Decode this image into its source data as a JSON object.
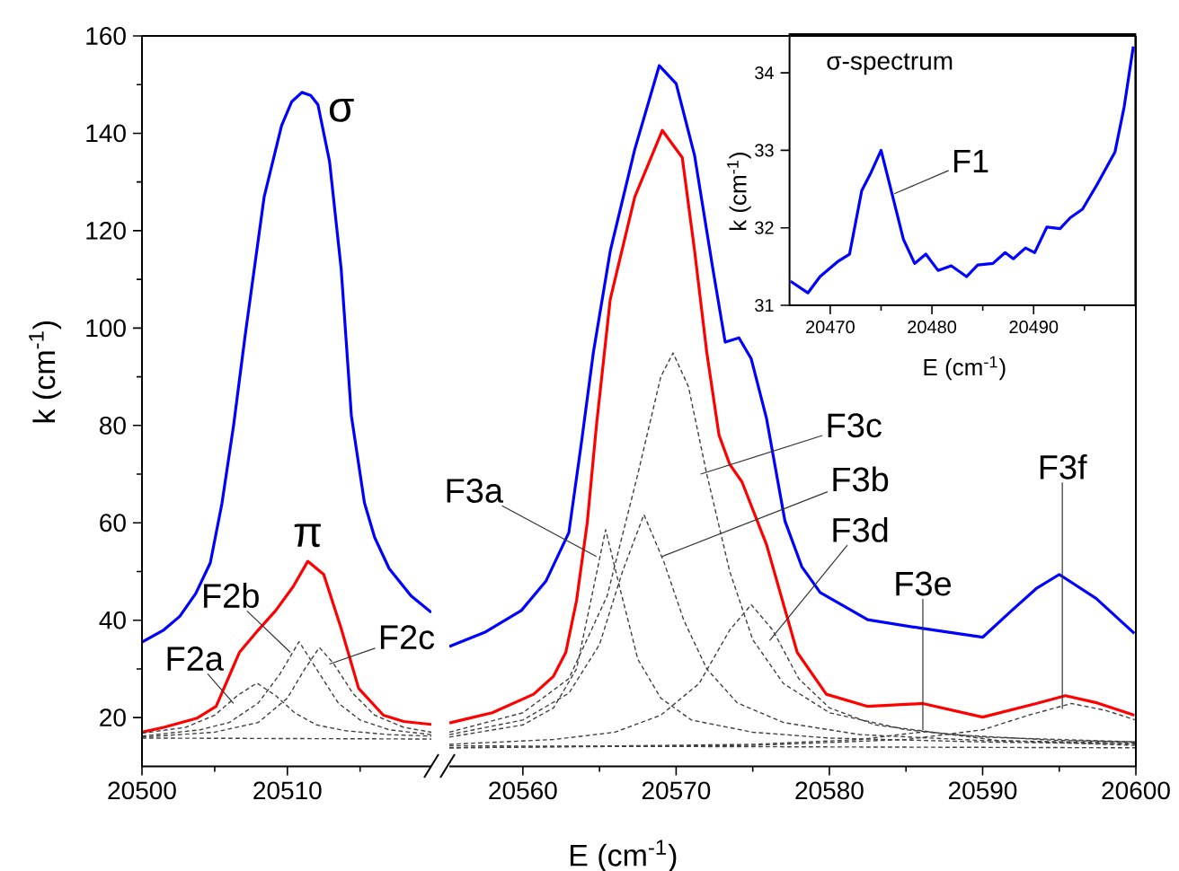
{
  "chart_data": [
    {
      "type": "line",
      "ylabel": "k (cm$^{-1}$)",
      "xlim": [
        20500,
        20519.9
      ],
      "ylim": [
        10,
        160
      ],
      "xticks": [
        20500,
        {
          "value": 20505,
          "label": null
        },
        20510,
        {
          "value": 20515,
          "label": null
        }
      ],
      "yticks": [
        20,
        {
          "value": 30,
          "label": null
        },
        40,
        {
          "value": 50,
          "label": null
        },
        60,
        {
          "value": 70,
          "label": null
        },
        80,
        {
          "value": 90,
          "label": null
        },
        100,
        {
          "value": 110,
          "label": null
        },
        120,
        {
          "value": 130,
          "label": null
        },
        140,
        {
          "value": 150,
          "label": null
        },
        160
      ],
      "series": [
        {
          "name": "σ",
          "color": "#0000ff",
          "line_style": "solid",
          "x": [
            20500,
            20501.5,
            20502.6,
            20503.7,
            20504.7,
            20505.5,
            20506.3,
            20507.1,
            20508.4,
            20509.6,
            20510.3,
            20511.0,
            20511.6,
            20512.1,
            20512.9,
            20513.7,
            20514.4,
            20515.3,
            20516.0,
            20517.0,
            20518.5,
            20519.9
          ],
          "values": [
            35.5,
            38,
            40.8,
            45.5,
            51.8,
            64,
            80,
            98.6,
            126.9,
            141.6,
            146.5,
            148.4,
            147.8,
            145.9,
            134.2,
            112.1,
            82,
            64.1,
            57,
            50.6,
            45,
            41.6
          ]
        },
        {
          "name": "π",
          "color": "#ff0000",
          "line_style": "solid",
          "x": [
            20500,
            20501.5,
            20503.8,
            20505.1,
            20506.7,
            20508,
            20509.2,
            20510.4,
            20511.4,
            20512.5,
            20513.7,
            20514.9,
            20516.6,
            20518,
            20519.9
          ],
          "values": [
            17,
            18,
            19.9,
            22.3,
            33.4,
            38,
            42,
            46.9,
            52.1,
            49.4,
            38.3,
            26,
            20.5,
            19.2,
            18.6
          ]
        },
        {
          "color": "#404040",
          "line_style": "dashed",
          "x": [
            20500,
            20503,
            20505,
            20506.6,
            20507.9,
            20509.2,
            20510.5,
            20512,
            20514,
            20517,
            20519.9
          ],
          "values": [
            16.8,
            18,
            20.5,
            24.6,
            27.1,
            24.5,
            21,
            18.5,
            17.3,
            16.5,
            16.2
          ]
        },
        {
          "color": "#404040",
          "line_style": "dashed",
          "x": [
            20500,
            20504,
            20506,
            20508,
            20509.5,
            20510.8,
            20512,
            20513.5,
            20515,
            20517,
            20519.9
          ],
          "values": [
            16.2,
            17.5,
            19,
            23,
            29,
            35.6,
            30,
            23,
            19.5,
            17.5,
            16.5
          ]
        },
        {
          "color": "#404040",
          "line_style": "dashed",
          "x": [
            20500,
            20505,
            20508,
            20510,
            20511.2,
            20512.2,
            20513.2,
            20514.5,
            20516,
            20518,
            20519.9
          ],
          "values": [
            16,
            17,
            19,
            24,
            30,
            34.4,
            31,
            25,
            20.5,
            18,
            17
          ]
        },
        {
          "color": "#404040",
          "line_style": "dashed",
          "x": [
            20500,
            20519.9
          ],
          "values": [
            15.8,
            15.6
          ]
        }
      ],
      "annotations": [
        {
          "text": "F2a",
          "x": 20506.3,
          "y": 22.9
        },
        {
          "text": "F2b",
          "x": 20510.2,
          "y": 33.4
        },
        {
          "text": "F2c",
          "x": 20512.9,
          "y": 31
        }
      ]
    },
    {
      "type": "line",
      "xlabel": "E (cm$^{-1}$)",
      "xlim": [
        20555.2,
        20600
      ],
      "ylim": [
        10,
        160
      ],
      "tick_labels": "x",
      "xticks": [
        20560,
        {
          "value": 20565,
          "label": null
        },
        20570,
        {
          "value": 20575,
          "label": null
        },
        20580,
        {
          "value": 20585,
          "label": null
        },
        20590,
        {
          "value": 20595,
          "label": null
        },
        20600
      ],
      "series": [
        {
          "color": "#0000ff",
          "line_style": "solid",
          "x": [
            20555.2,
            20557.5,
            20559.9,
            20561.5,
            20563.0,
            20563.8,
            20564.6,
            20565.7,
            20567.3,
            20568.9,
            20570.0,
            20571.2,
            20572.4,
            20573.2,
            20574.1,
            20574.9,
            20575.9,
            20577.1,
            20578.2,
            20579.4,
            20582.5,
            20586.1,
            20590.0,
            20591.9,
            20593.5,
            20595.0,
            20597.4,
            20599.9
          ],
          "values": [
            34.6,
            37.5,
            42,
            48,
            58,
            76,
            95,
            115.8,
            136.7,
            153.9,
            150.2,
            135.5,
            112.1,
            97.1,
            98,
            93.7,
            81.4,
            60.4,
            51,
            45.7,
            40.1,
            38.3,
            36.5,
            42,
            46.5,
            49.4,
            44.5,
            37.3
          ]
        },
        {
          "color": "#ff0000",
          "line_style": "solid",
          "x": [
            20555.2,
            20558,
            20560.7,
            20562,
            20562.8,
            20563.5,
            20564.2,
            20564.8,
            20565.7,
            20567.3,
            20569.1,
            20570.4,
            20571.2,
            20572.0,
            20572.8,
            20573.5,
            20574.3,
            20575.9,
            20577.9,
            20579.8,
            20582.5,
            20586.1,
            20590,
            20593.5,
            20595.4,
            20597.5,
            20599.9
          ],
          "values": [
            18.9,
            21,
            24.8,
            28.5,
            33.4,
            44,
            60,
            80,
            105.9,
            126.9,
            140.6,
            135,
            116,
            95,
            78,
            72,
            68.4,
            55.5,
            33.4,
            24.8,
            22.3,
            22.9,
            20.1,
            22.9,
            24.5,
            23,
            20.5
          ]
        },
        {
          "color": "#404040",
          "line_style": "dashed",
          "x": [
            20555.2,
            20560,
            20562,
            20563.5,
            20564.5,
            20565.4,
            20566.3,
            20567.5,
            20569,
            20571,
            20575,
            20580,
            20590,
            20600
          ],
          "values": [
            16,
            18.5,
            22,
            30,
            45,
            58.6,
            47,
            32,
            24,
            19.5,
            17,
            15.8,
            15,
            14.6
          ]
        },
        {
          "color": "#404040",
          "line_style": "dashed",
          "x": [
            20555.2,
            20560,
            20563,
            20565,
            20566.5,
            20567.9,
            20569.2,
            20570.5,
            20572,
            20574,
            20577,
            20582,
            20590,
            20600
          ],
          "values": [
            16.5,
            19.5,
            25,
            35,
            50,
            61.7,
            52,
            40,
            30,
            23,
            19,
            16.5,
            15.3,
            14.8
          ]
        },
        {
          "color": "#404040",
          "line_style": "dashed",
          "x": [
            20555.2,
            20560,
            20563,
            20565.5,
            20567.5,
            20569,
            20569.8,
            20570.8,
            20572,
            20573.5,
            20575,
            20577,
            20580,
            20585,
            20590,
            20600
          ],
          "values": [
            17,
            21,
            28,
            45,
            70,
            90,
            94.9,
            88,
            70,
            50,
            36,
            27,
            21,
            17.5,
            16,
            15
          ]
        },
        {
          "color": "#404040",
          "line_style": "dashed",
          "x": [
            20555.2,
            20562,
            20566,
            20569,
            20571.5,
            20573.5,
            20574.9,
            20576.3,
            20578,
            20580,
            20583,
            20588,
            20595,
            20600
          ],
          "values": [
            14.5,
            15.5,
            17,
            20.5,
            27,
            38,
            43.2,
            38,
            28,
            22,
            18.5,
            16.5,
            15.3,
            15
          ]
        },
        {
          "color": "#404040",
          "line_style": "dashed",
          "x": [
            20555.2,
            20575,
            20582,
            20584.5,
            20586.3,
            20588,
            20591,
            20600
          ],
          "values": [
            13.8,
            14.5,
            15.5,
            16.5,
            17.1,
            16.5,
            15.3,
            14.3
          ]
        },
        {
          "color": "#404040",
          "line_style": "dashed",
          "x": [
            20555.2,
            20575,
            20585,
            20590,
            20593,
            20595.8,
            20598,
            20600
          ],
          "values": [
            13.8,
            14.3,
            15.5,
            17.5,
            20.5,
            22.9,
            21.5,
            19.5
          ]
        },
        {
          "color": "#404040",
          "line_style": "dashed",
          "x": [
            20555.2,
            20600
          ],
          "values": [
            14.2,
            13.8
          ]
        }
      ],
      "annotations": [
        {
          "text": "F3a",
          "x": 20564.8,
          "y": 53.1
        },
        {
          "text": "F3b",
          "x": 20569.1,
          "y": 53.1
        },
        {
          "text": "F3c",
          "x": 20571.6,
          "y": 70
        },
        {
          "text": "F3d",
          "x": 20576.1,
          "y": 35.8
        },
        {
          "text": "F3e",
          "x": 20586.1,
          "y": 17.4
        },
        {
          "text": "F3f",
          "x": 20595.2,
          "y": 21.8
        }
      ]
    },
    {
      "type": "line",
      "title": "σ-spectrum",
      "xlabel": "E (cm$^{-1}$)",
      "ylabel": "k (cm$^{-1}$)",
      "xlim": [
        20466,
        20500
      ],
      "ylim": [
        31,
        34.5
      ],
      "xticks": [
        20470,
        {
          "value": 20475,
          "label": null
        },
        20480,
        {
          "value": 20485,
          "label": null
        },
        20490,
        {
          "value": 20495,
          "label": null
        }
      ],
      "yticks": [
        31,
        32,
        33,
        34
      ],
      "series": [
        {
          "color": "#0000ff",
          "line_style": "solid",
          "x": [
            20466.1,
            20467.8,
            20469.0,
            20470.8,
            20471.9,
            20473.1,
            20474.0,
            20475.0,
            20476.0,
            20477.2,
            20478.3,
            20479.4,
            20480.6,
            20481.9,
            20483.4,
            20484.5,
            20486.0,
            20487.2,
            20488.0,
            20489.2,
            20490.1,
            20491.3,
            20492.6,
            20493.6,
            20494.8,
            20496.2,
            20498.0,
            20498.9,
            20499.8
          ],
          "values": [
            31.31,
            31.16,
            31.37,
            31.57,
            31.66,
            32.48,
            32.71,
            33.0,
            32.48,
            31.85,
            31.54,
            31.66,
            31.45,
            31.51,
            31.37,
            31.52,
            31.54,
            31.68,
            31.6,
            31.74,
            31.68,
            32.01,
            31.99,
            32.13,
            32.24,
            32.55,
            32.98,
            33.56,
            34.34
          ]
        }
      ],
      "annotations": [
        {
          "text": "F1",
          "x": 20476.3,
          "y": 32.44
        }
      ]
    }
  ]
}
